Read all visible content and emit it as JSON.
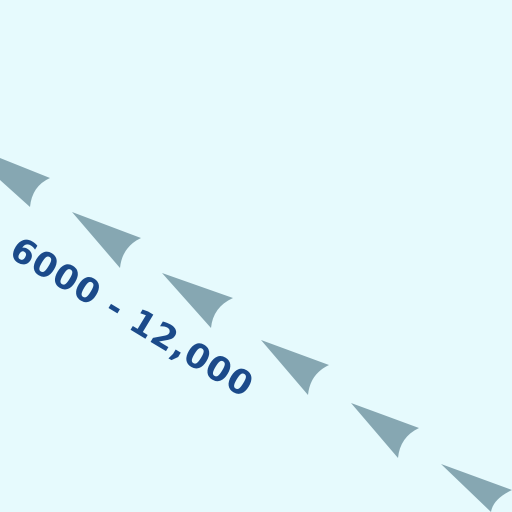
{
  "map": {
    "background_color": "#e6fafd",
    "route_label": "6000 - 12,000",
    "label_color": "#1b4a8a",
    "arrow_color": "#86a7b2",
    "arrow_icon": "chevron-arrowhead-icon",
    "arrow_count": 6
  }
}
